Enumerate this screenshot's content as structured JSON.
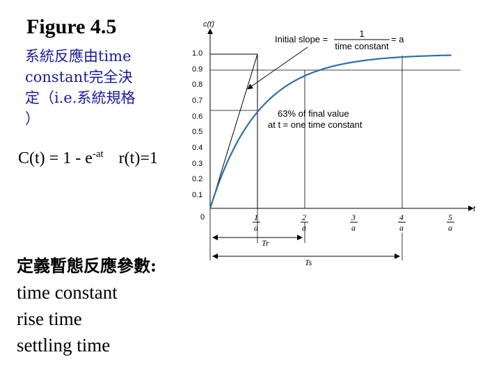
{
  "slide": {
    "title": "Figure 4.5",
    "subtitle_lines": [
      "系統反應由time",
      "constant完全決",
      "定（i.e.系統規格",
      "）"
    ],
    "equation": {
      "lhs": "C(t) = 1 - e",
      "exponent": "-at",
      "input": "r(t)=1"
    },
    "params_heading": "定義暫態反應參數:",
    "params": [
      "time constant",
      "rise time",
      "settling time"
    ]
  },
  "figure": {
    "y_axis_label": "c(t)",
    "x_axis_label": "t",
    "origin_label": "0",
    "y_ticks": [
      "0.1",
      "0.2",
      "0.3",
      "0.4",
      "0.5",
      "0.6",
      "0.7",
      "0.8",
      "0.9",
      "1.0"
    ],
    "x_tick_numerators": [
      "1",
      "2",
      "3",
      "4",
      "5"
    ],
    "x_tick_denominator": "a",
    "annotation_slope": {
      "text": "Initial slope = ",
      "frac_num": "1",
      "frac_den": "time constant",
      "suffix": " = a"
    },
    "annotation_63": [
      "63% of final value",
      "at t = one time constant"
    ],
    "rise_time_label": "Tr",
    "settling_time_label": "Ts",
    "curve": "c(t) = 1 - e^(-at)",
    "colors": {
      "curve": "#2e6fa8",
      "axes": "#000000",
      "subtitle": "#1a1aa0"
    }
  }
}
